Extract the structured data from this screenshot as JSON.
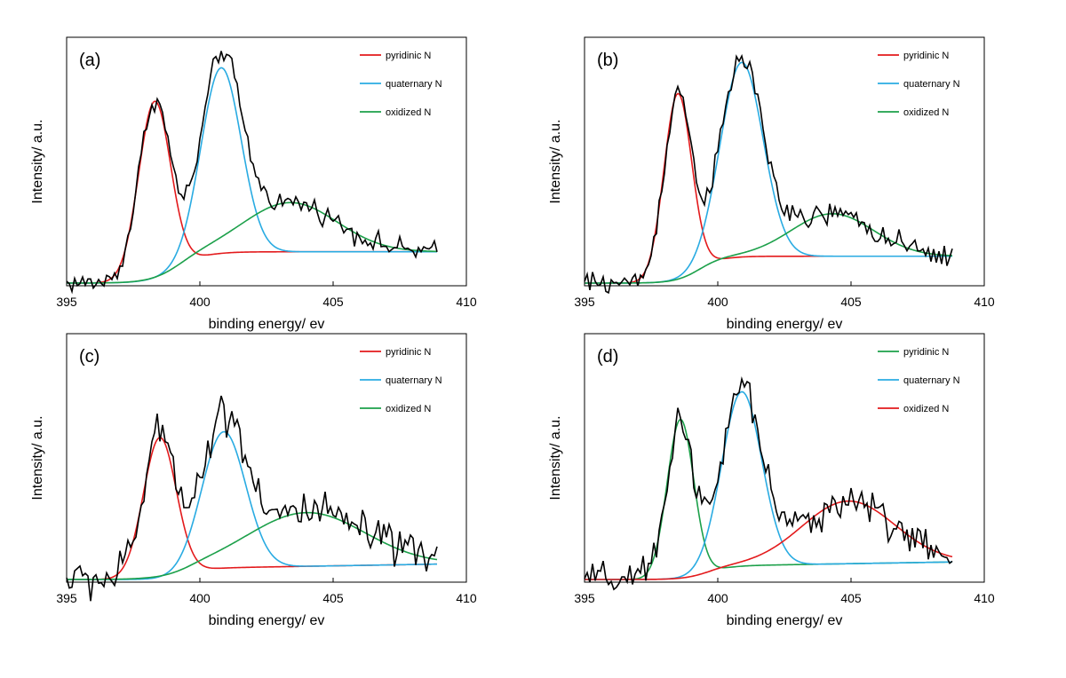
{
  "chart_data": [
    {
      "type": "line",
      "panel_label": "(a)",
      "xlabel": "binding energy/ ev",
      "ylabel": "Intensity/ a.u.",
      "xlim": [
        395,
        410
      ],
      "ylim": [
        0,
        1
      ],
      "x_ticks": [
        "395",
        "400",
        "405",
        "410"
      ],
      "legend_position": "top-right",
      "components": [
        {
          "name": "pyridinic N",
          "color": "#e31a1c",
          "center": 398.3,
          "amplitude": 0.79,
          "sigma": 0.6
        },
        {
          "name": "quaternary N",
          "color": "#29abe2",
          "center": 400.8,
          "amplitude": 0.83,
          "sigma": 0.75
        },
        {
          "name": "oxidized N",
          "color": "#1ca04a",
          "center": 403.4,
          "amplitude": 0.22,
          "sigma": 1.75
        }
      ],
      "baseline": {
        "start": 395.0,
        "low": 0.0,
        "high": 0.14,
        "center": 399.2,
        "width": 0.55,
        "slope": 0.0
      },
      "noise": 0.035,
      "x_end": 408.9
    },
    {
      "type": "line",
      "panel_label": "(b)",
      "xlabel": "binding energy/ ev",
      "ylabel": "Intensity/ a.u.",
      "xlim": [
        395,
        410
      ],
      "ylim": [
        0,
        1
      ],
      "x_ticks": [
        "395",
        "400",
        "405",
        "410"
      ],
      "legend_position": "top-right",
      "components": [
        {
          "name": "pyridinic N",
          "color": "#e31a1c",
          "center": 398.5,
          "amplitude": 0.83,
          "sigma": 0.52
        },
        {
          "name": "quaternary N",
          "color": "#29abe2",
          "center": 400.9,
          "amplitude": 0.87,
          "sigma": 0.8
        },
        {
          "name": "oxidized N",
          "color": "#1ca04a",
          "center": 404.3,
          "amplitude": 0.19,
          "sigma": 1.55
        }
      ],
      "baseline": {
        "start": 395.0,
        "low": 0.0,
        "high": 0.12,
        "center": 399.3,
        "width": 0.45,
        "slope": 0.0
      },
      "noise": 0.04,
      "x_end": 408.8
    },
    {
      "type": "line",
      "panel_label": "(c)",
      "xlabel": "binding energy/ ev",
      "ylabel": "Intensity/ a.u.",
      "xlim": [
        395,
        410
      ],
      "ylim": [
        0,
        1
      ],
      "x_ticks": [
        "395",
        "400",
        "405",
        "410"
      ],
      "legend_position": "top-right",
      "components": [
        {
          "name": "pyridinic N",
          "color": "#e31a1c",
          "center": 398.5,
          "amplitude": 0.63,
          "sigma": 0.62
        },
        {
          "name": "quaternary N",
          "color": "#29abe2",
          "center": 400.9,
          "amplitude": 0.61,
          "sigma": 0.82
        },
        {
          "name": "oxidized N",
          "color": "#1ca04a",
          "center": 404.0,
          "amplitude": 0.24,
          "sigma": 2.2
        }
      ],
      "baseline": {
        "start": 395.0,
        "low": 0.0,
        "high": 0.05,
        "center": 399.5,
        "width": 0.45,
        "slope": 0.002
      },
      "noise": 0.07,
      "x_end": 408.9
    },
    {
      "type": "line",
      "panel_label": "(d)",
      "xlabel": "binding energy/ ev",
      "ylabel": "Intensity/ a.u.",
      "xlim": [
        395,
        410
      ],
      "ylim": [
        0,
        1
      ],
      "x_ticks": [
        "395",
        "400",
        "405",
        "410"
      ],
      "legend_position": "top-right",
      "components": [
        {
          "name": "pyridinic N",
          "color": "#1ca04a",
          "center": 398.6,
          "amplitude": 0.71,
          "sigma": 0.5
        },
        {
          "name": "quaternary N",
          "color": "#29abe2",
          "center": 400.9,
          "amplitude": 0.78,
          "sigma": 0.75
        },
        {
          "name": "oxidized N",
          "color": "#e31a1c",
          "center": 404.9,
          "amplitude": 0.28,
          "sigma": 1.75
        }
      ],
      "baseline": {
        "start": 395.0,
        "low": 0.0,
        "high": 0.06,
        "center": 399.6,
        "width": 0.45,
        "slope": 0.002
      },
      "noise": 0.06,
      "x_end": 408.8
    }
  ]
}
